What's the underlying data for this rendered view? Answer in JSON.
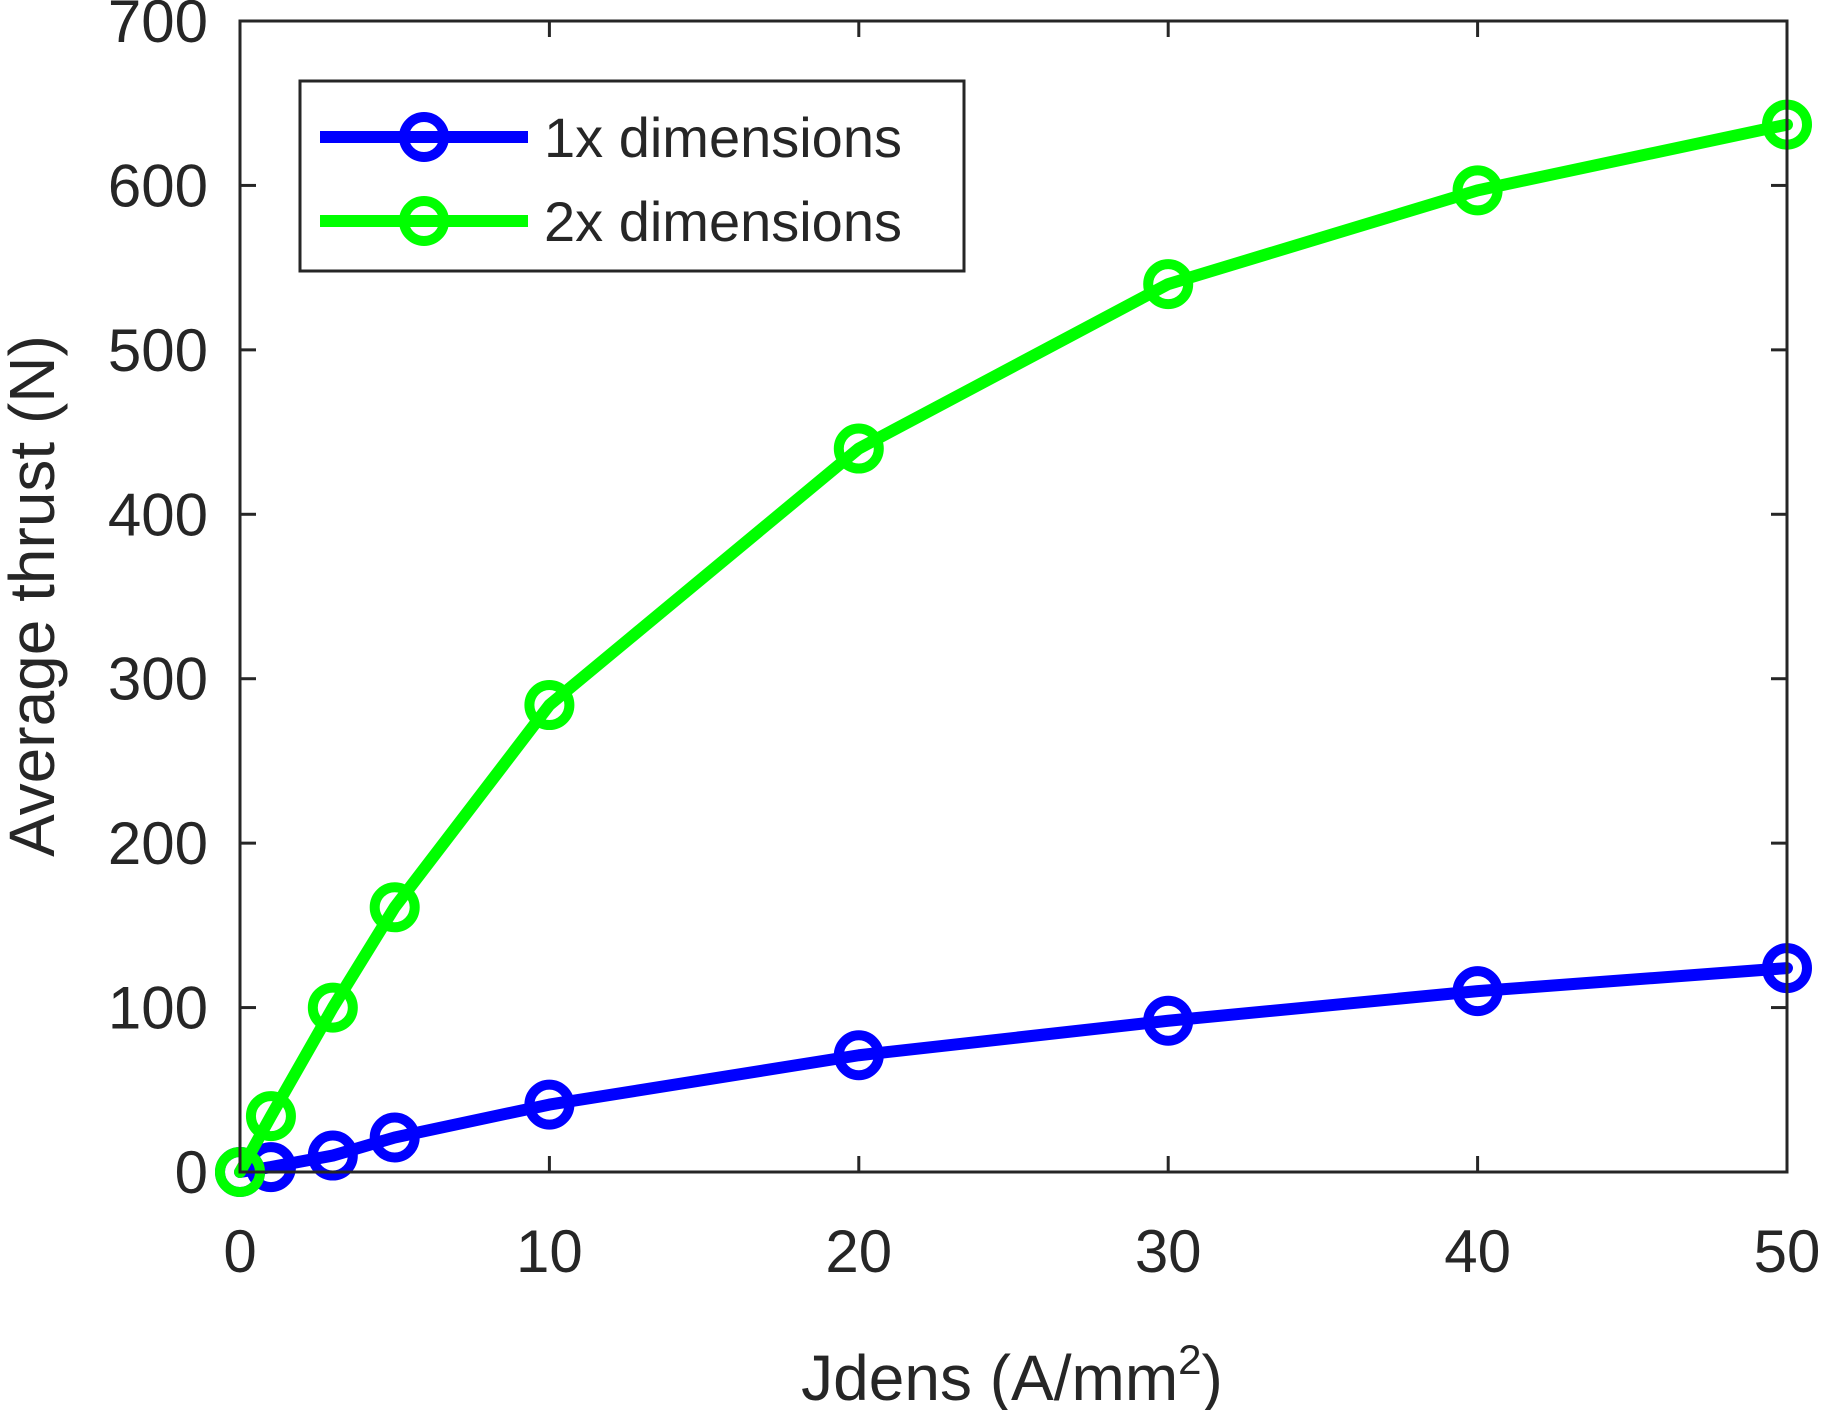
{
  "chart_data": {
    "type": "line",
    "title": "",
    "xlabel": "Jdens (A/mm",
    "xlabel_sup": "2",
    "xlabel_end": ")",
    "ylabel": "Average thrust (N)",
    "xlim": [
      0,
      50
    ],
    "ylim": [
      0,
      700
    ],
    "xticks": [
      0,
      10,
      20,
      30,
      40,
      50
    ],
    "yticks": [
      0,
      100,
      200,
      300,
      400,
      500,
      600,
      700
    ],
    "grid": false,
    "legend_position": "top-left",
    "series": [
      {
        "name": "1x dimensions",
        "color": "#0000ff",
        "marker": "circle",
        "x": [
          0,
          1,
          3,
          5,
          10,
          20,
          30,
          40,
          50
        ],
        "y": [
          0,
          3,
          10,
          21,
          41,
          71,
          92,
          110,
          124
        ]
      },
      {
        "name": "2x dimensions",
        "color": "#00ff00",
        "marker": "circle",
        "x": [
          0,
          1,
          3,
          5,
          10,
          20,
          30,
          40,
          50
        ],
        "y": [
          0,
          34,
          100,
          161,
          284,
          440,
          540,
          597,
          637
        ]
      }
    ]
  }
}
